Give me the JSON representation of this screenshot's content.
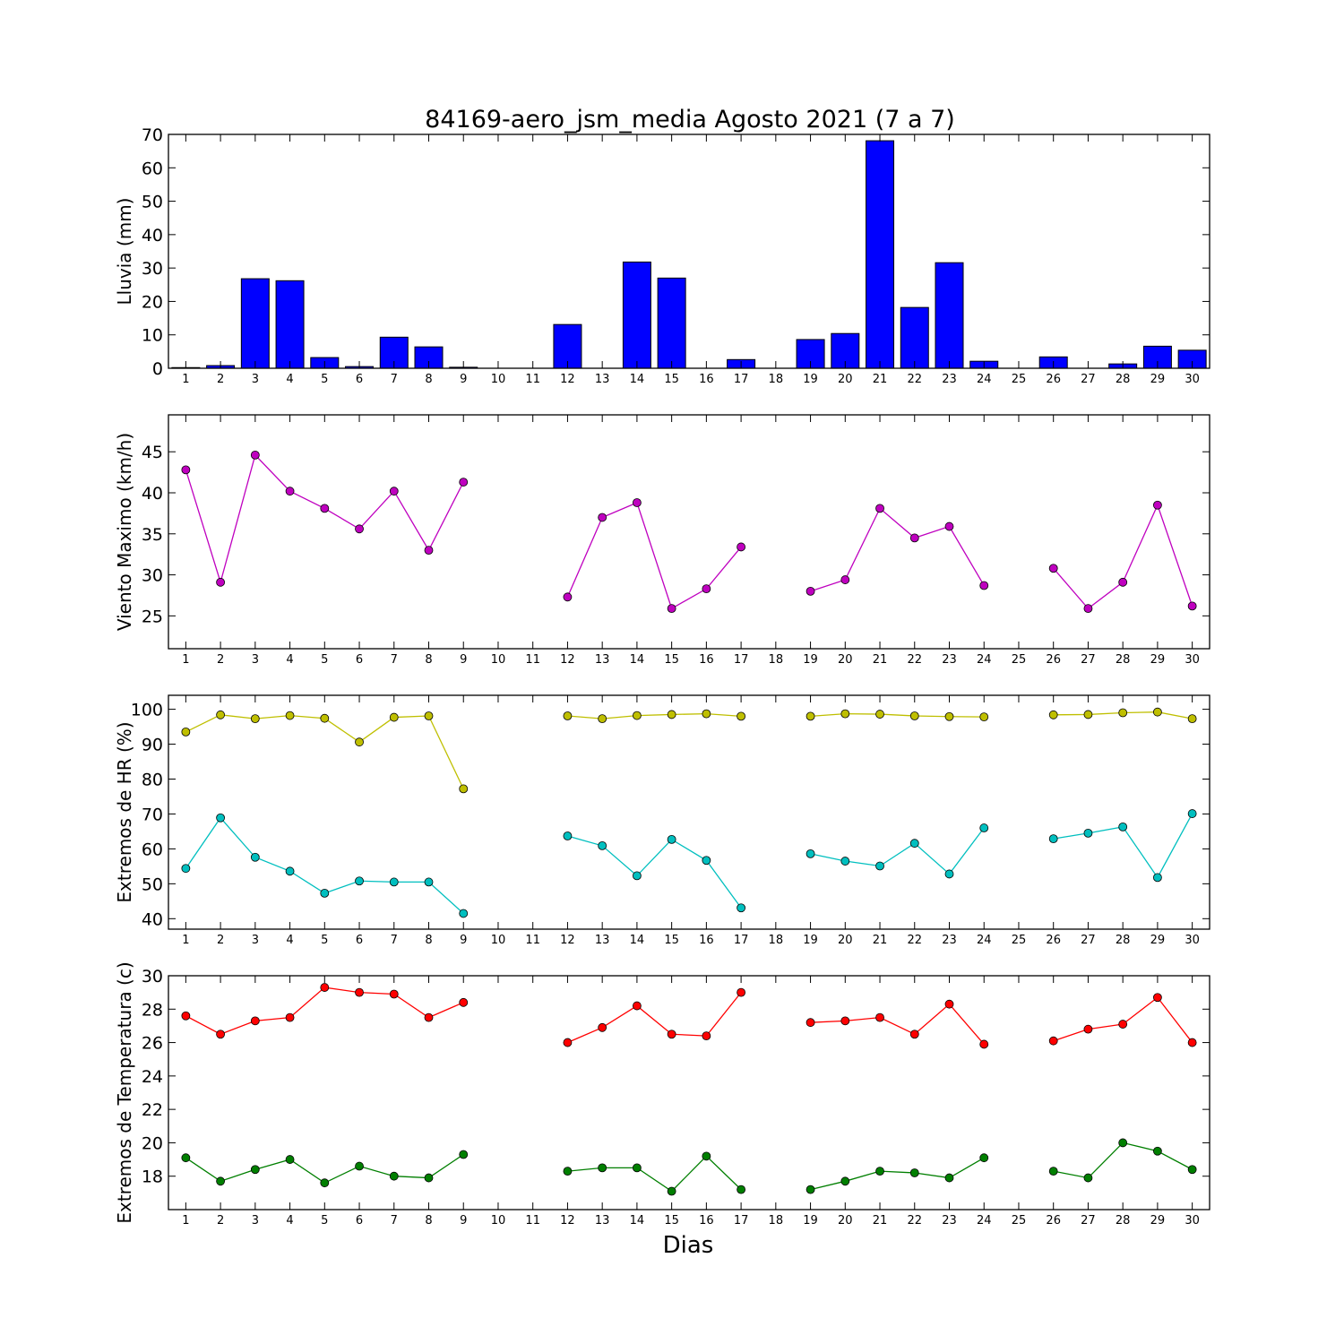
{
  "title": "84169-aero_jsm_media Agosto 2021  (7 a 7)",
  "xlabel": "Dias",
  "days": [
    1,
    2,
    3,
    4,
    5,
    6,
    7,
    8,
    9,
    10,
    11,
    12,
    13,
    14,
    15,
    16,
    17,
    18,
    19,
    20,
    21,
    22,
    23,
    24,
    25,
    26,
    27,
    28,
    29,
    30
  ],
  "chart_data": [
    {
      "type": "bar",
      "ylabel": "Lluvia (mm)",
      "ylim": [
        0,
        70
      ],
      "yticks": [
        0,
        10,
        20,
        30,
        40,
        50,
        60,
        70
      ],
      "series": [
        {
          "color": "#0000ff",
          "values": [
            0.2,
            0.8,
            26.8,
            26.2,
            3.2,
            0.5,
            9.3,
            6.4,
            0.3,
            0,
            0,
            13.1,
            0,
            31.8,
            27.0,
            0,
            2.6,
            0,
            8.6,
            10.4,
            68.1,
            18.2,
            31.6,
            2.1,
            0,
            3.4,
            0,
            1.3,
            6.6,
            5.4
          ]
        }
      ]
    },
    {
      "type": "line",
      "ylabel": "Viento Maximo (km/h)",
      "ylim": [
        21,
        49.5
      ],
      "yticks": [
        25,
        30,
        35,
        40,
        45
      ],
      "series": [
        {
          "color": "#bf00bf",
          "values": [
            42.8,
            29.1,
            44.6,
            40.2,
            38.1,
            35.6,
            40.2,
            33.0,
            41.3,
            null,
            null,
            27.3,
            37.0,
            38.8,
            25.9,
            28.3,
            33.4,
            null,
            28.0,
            29.4,
            38.1,
            34.5,
            35.9,
            28.7,
            null,
            30.8,
            25.9,
            29.1,
            38.5,
            26.2
          ]
        }
      ]
    },
    {
      "type": "line",
      "ylabel": "Extremos de HR (%)",
      "ylim": [
        37,
        104
      ],
      "yticks": [
        40,
        50,
        60,
        70,
        80,
        90,
        100
      ],
      "series": [
        {
          "color": "#bfbf00",
          "values": [
            93.5,
            98.4,
            97.3,
            98.2,
            97.4,
            90.6,
            97.7,
            98.1,
            77.2,
            null,
            null,
            98.1,
            97.3,
            98.2,
            98.5,
            98.7,
            98.0,
            null,
            98.0,
            98.7,
            98.6,
            98.1,
            97.9,
            97.8,
            null,
            98.4,
            98.5,
            99.0,
            99.2,
            97.3
          ]
        },
        {
          "color": "#00bfbf",
          "values": [
            54.4,
            68.9,
            57.6,
            53.6,
            47.3,
            50.8,
            50.5,
            50.5,
            41.5,
            null,
            null,
            63.7,
            60.9,
            52.3,
            62.7,
            56.7,
            43.1,
            null,
            58.6,
            56.5,
            55.1,
            61.6,
            52.8,
            66.0,
            null,
            62.9,
            64.5,
            66.3,
            51.8,
            70.1
          ]
        }
      ]
    },
    {
      "type": "line",
      "ylabel": "Extremos de Temperatura (c)",
      "ylim": [
        16,
        30
      ],
      "yticks": [
        18,
        20,
        22,
        24,
        26,
        28,
        30
      ],
      "series": [
        {
          "color": "#ff0000",
          "values": [
            27.6,
            26.5,
            27.3,
            27.5,
            29.3,
            29.0,
            28.9,
            27.5,
            28.4,
            null,
            null,
            26.0,
            26.9,
            28.2,
            26.5,
            26.4,
            29.0,
            null,
            27.2,
            27.3,
            27.5,
            26.5,
            28.3,
            25.9,
            null,
            26.1,
            26.8,
            27.1,
            28.7,
            26.0
          ]
        },
        {
          "color": "#007f00",
          "values": [
            19.1,
            17.7,
            18.4,
            19.0,
            17.6,
            18.6,
            18.0,
            17.9,
            19.3,
            null,
            null,
            18.3,
            18.5,
            18.5,
            17.1,
            19.2,
            17.2,
            null,
            17.2,
            17.7,
            18.3,
            18.2,
            17.9,
            19.1,
            null,
            18.3,
            17.9,
            20.0,
            19.5,
            18.4
          ]
        }
      ]
    }
  ]
}
